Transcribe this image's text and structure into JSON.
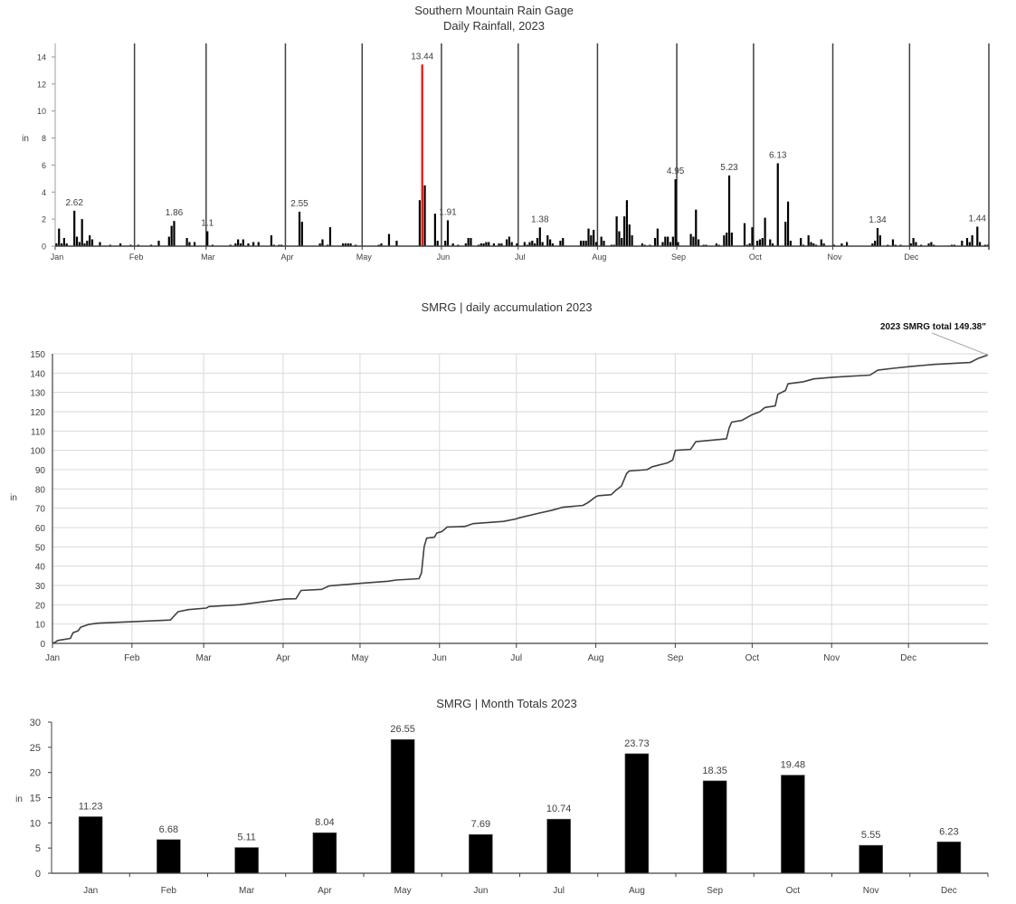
{
  "chart_data": [
    {
      "type": "bar",
      "title": "Southern Mountain Rain Gage",
      "subtitle": "Daily Rainfall, 2023",
      "xlabel": "",
      "ylabel": "in",
      "ylim": [
        0,
        15
      ],
      "yticks": [
        0,
        2,
        4,
        6,
        8,
        10,
        12,
        14
      ],
      "year": 2023,
      "month_labels": [
        "Jan",
        "Feb",
        "Mar",
        "Apr",
        "May",
        "Jun",
        "Jul",
        "Aug",
        "Sep",
        "Oct",
        "Nov",
        "Dec"
      ],
      "month_dividers": true,
      "bar_color": "#000000",
      "highlight_color": "#ff0000",
      "highlight_date": "05-24",
      "labeled_dates": [
        "01-08",
        "02-16",
        "03-01",
        "04-06",
        "05-24",
        "06-03",
        "07-09",
        "08-31",
        "09-21",
        "10-10",
        "11-18",
        "12-27"
      ],
      "daily": [
        [
          "01-01",
          0.2
        ],
        [
          "01-02",
          1.3
        ],
        [
          "01-03",
          0.2
        ],
        [
          "01-04",
          0.6
        ],
        [
          "01-05",
          0.2
        ],
        [
          "01-08",
          2.62
        ],
        [
          "01-09",
          0.7
        ],
        [
          "01-10",
          0.3
        ],
        [
          "01-11",
          2.0
        ],
        [
          "01-12",
          0.2
        ],
        [
          "01-13",
          0.4
        ],
        [
          "01-14",
          0.8
        ],
        [
          "01-15",
          0.5
        ],
        [
          "01-18",
          0.3
        ],
        [
          "01-22",
          0.1
        ],
        [
          "01-26",
          0.2
        ],
        [
          "01-30",
          0.1
        ],
        [
          "02-02",
          0.1
        ],
        [
          "02-07",
          0.1
        ],
        [
          "02-10",
          0.4
        ],
        [
          "02-14",
          0.7
        ],
        [
          "02-15",
          1.5
        ],
        [
          "02-16",
          1.86
        ],
        [
          "02-21",
          0.6
        ],
        [
          "02-22",
          0.3
        ],
        [
          "02-24",
          0.3
        ],
        [
          "03-01",
          1.1
        ],
        [
          "03-03",
          0.1
        ],
        [
          "03-10",
          0.1
        ],
        [
          "03-12",
          0.2
        ],
        [
          "03-13",
          0.5
        ],
        [
          "03-14",
          0.2
        ],
        [
          "03-15",
          0.5
        ],
        [
          "03-17",
          0.2
        ],
        [
          "03-19",
          0.3
        ],
        [
          "03-21",
          0.3
        ],
        [
          "03-26",
          0.8
        ],
        [
          "03-27",
          0.1
        ],
        [
          "03-29",
          0.1
        ],
        [
          "03-30",
          0.1
        ],
        [
          "04-06",
          2.55
        ],
        [
          "04-07",
          1.8
        ],
        [
          "04-14",
          0.2
        ],
        [
          "04-15",
          0.5
        ],
        [
          "04-17",
          0.1
        ],
        [
          "04-18",
          1.4
        ],
        [
          "04-23",
          0.2
        ],
        [
          "04-24",
          0.2
        ],
        [
          "04-25",
          0.2
        ],
        [
          "04-26",
          0.2
        ],
        [
          "04-28",
          0.1
        ],
        [
          "05-07",
          0.1
        ],
        [
          "05-08",
          0.2
        ],
        [
          "05-11",
          0.9
        ],
        [
          "05-14",
          0.4
        ],
        [
          "05-23",
          3.4
        ],
        [
          "05-24",
          13.44
        ],
        [
          "05-25",
          4.5
        ],
        [
          "05-29",
          2.4
        ],
        [
          "05-30",
          0.4
        ],
        [
          "06-02",
          0.4
        ],
        [
          "06-03",
          1.91
        ],
        [
          "06-05",
          0.2
        ],
        [
          "06-07",
          0.1
        ],
        [
          "06-10",
          0.2
        ],
        [
          "06-11",
          0.6
        ],
        [
          "06-12",
          0.6
        ],
        [
          "06-15",
          0.1
        ],
        [
          "06-16",
          0.2
        ],
        [
          "06-17",
          0.2
        ],
        [
          "06-18",
          0.3
        ],
        [
          "06-19",
          0.3
        ],
        [
          "06-21",
          0.2
        ],
        [
          "06-23",
          0.2
        ],
        [
          "06-24",
          0.2
        ],
        [
          "06-26",
          0.5
        ],
        [
          "06-27",
          0.7
        ],
        [
          "06-28",
          0.3
        ],
        [
          "06-30",
          0.2
        ],
        [
          "07-03",
          0.3
        ],
        [
          "07-04",
          0.1
        ],
        [
          "07-05",
          0.3
        ],
        [
          "07-06",
          0.4
        ],
        [
          "07-07",
          0.2
        ],
        [
          "07-08",
          0.6
        ],
        [
          "07-09",
          1.38
        ],
        [
          "07-10",
          0.3
        ],
        [
          "07-12",
          0.8
        ],
        [
          "07-13",
          0.5
        ],
        [
          "07-14",
          0.2
        ],
        [
          "07-17",
          0.4
        ],
        [
          "07-18",
          0.6
        ],
        [
          "07-25",
          0.4
        ],
        [
          "07-26",
          0.4
        ],
        [
          "07-27",
          0.4
        ],
        [
          "07-28",
          1.3
        ],
        [
          "07-29",
          0.8
        ],
        [
          "07-30",
          1.2
        ],
        [
          "07-31",
          0.3
        ],
        [
          "08-02",
          0.7
        ],
        [
          "08-03",
          0.4
        ],
        [
          "08-06",
          0.1
        ],
        [
          "08-07",
          0.1
        ],
        [
          "08-08",
          2.2
        ],
        [
          "08-09",
          1.1
        ],
        [
          "08-10",
          0.6
        ],
        [
          "08-11",
          2.2
        ],
        [
          "08-12",
          3.4
        ],
        [
          "08-13",
          1.6
        ],
        [
          "08-14",
          0.8
        ],
        [
          "08-18",
          0.2
        ],
        [
          "08-19",
          0.1
        ],
        [
          "08-21",
          0.1
        ],
        [
          "08-23",
          0.6
        ],
        [
          "08-24",
          1.3
        ],
        [
          "08-26",
          0.3
        ],
        [
          "08-27",
          0.7
        ],
        [
          "08-28",
          0.7
        ],
        [
          "08-29",
          0.3
        ],
        [
          "08-30",
          0.7
        ],
        [
          "08-31",
          4.95
        ],
        [
          "09-01",
          0.3
        ],
        [
          "09-06",
          0.9
        ],
        [
          "09-07",
          0.7
        ],
        [
          "09-08",
          2.7
        ],
        [
          "09-09",
          0.5
        ],
        [
          "09-11",
          0.1
        ],
        [
          "09-12",
          0.1
        ],
        [
          "09-16",
          0.2
        ],
        [
          "09-17",
          0.1
        ],
        [
          "09-19",
          0.8
        ],
        [
          "09-20",
          1.0
        ],
        [
          "09-21",
          5.23
        ],
        [
          "09-22",
          1.0
        ],
        [
          "09-27",
          1.7
        ],
        [
          "09-28",
          0.1
        ],
        [
          "09-29",
          0.2
        ],
        [
          "09-30",
          1.4
        ],
        [
          "10-02",
          0.4
        ],
        [
          "10-03",
          0.5
        ],
        [
          "10-04",
          0.6
        ],
        [
          "10-05",
          2.1
        ],
        [
          "10-07",
          0.5
        ],
        [
          "10-08",
          0.2
        ],
        [
          "10-10",
          6.13
        ],
        [
          "10-13",
          1.8
        ],
        [
          "10-14",
          3.3
        ],
        [
          "10-15",
          0.4
        ],
        [
          "10-19",
          0.6
        ],
        [
          "10-20",
          0.1
        ],
        [
          "10-22",
          0.8
        ],
        [
          "10-23",
          0.3
        ],
        [
          "10-24",
          0.2
        ],
        [
          "10-25",
          0.1
        ],
        [
          "10-27",
          0.5
        ],
        [
          "10-28",
          0.2
        ],
        [
          "11-01",
          0.1
        ],
        [
          "11-04",
          0.2
        ],
        [
          "11-06",
          0.3
        ],
        [
          "11-16",
          0.2
        ],
        [
          "11-17",
          0.4
        ],
        [
          "11-18",
          1.34
        ],
        [
          "11-19",
          0.8
        ],
        [
          "11-22",
          0.1
        ],
        [
          "11-24",
          0.5
        ],
        [
          "11-25",
          0.1
        ],
        [
          "11-27",
          0.1
        ],
        [
          "12-01",
          0.2
        ],
        [
          "12-02",
          0.6
        ],
        [
          "12-03",
          0.3
        ],
        [
          "12-05",
          0.1
        ],
        [
          "12-08",
          0.2
        ],
        [
          "12-09",
          0.3
        ],
        [
          "12-10",
          0.1
        ],
        [
          "12-17",
          0.1
        ],
        [
          "12-18",
          0.1
        ],
        [
          "12-21",
          0.4
        ],
        [
          "12-23",
          0.6
        ],
        [
          "12-24",
          0.3
        ],
        [
          "12-25",
          0.8
        ],
        [
          "12-27",
          1.44
        ],
        [
          "12-28",
          0.3
        ],
        [
          "12-30",
          0.1
        ],
        [
          "12-31",
          0.1
        ]
      ]
    },
    {
      "type": "line",
      "title": "SMRG | daily accumulation 2023",
      "xlabel": "",
      "ylabel": "in",
      "ylim": [
        0,
        150
      ],
      "yticks": [
        0,
        10,
        20,
        30,
        40,
        50,
        60,
        70,
        80,
        90,
        100,
        110,
        120,
        130,
        140,
        150
      ],
      "grid": true,
      "year": 2023,
      "month_labels": [
        "Jan",
        "Feb",
        "Mar",
        "Apr",
        "May",
        "Jun",
        "Jul",
        "Aug",
        "Sep",
        "Oct",
        "Nov",
        "Dec"
      ],
      "line_color": "#404040",
      "annotation": "2023 SMRG total 149.38\"",
      "points": [
        [
          "01-01",
          0.5
        ],
        [
          "01-02",
          1.5
        ],
        [
          "01-07",
          2.6
        ],
        [
          "01-08",
          5.5
        ],
        [
          "01-10",
          6.5
        ],
        [
          "01-11",
          8.4
        ],
        [
          "01-14",
          9.8
        ],
        [
          "01-18",
          10.5
        ],
        [
          "02-01",
          11.3
        ],
        [
          "02-15",
          12.1
        ],
        [
          "02-16",
          13.5
        ],
        [
          "02-18",
          16.4
        ],
        [
          "02-22",
          17.5
        ],
        [
          "03-01",
          18.3
        ],
        [
          "03-02",
          19.1
        ],
        [
          "03-14",
          20
        ],
        [
          "03-20",
          21
        ],
        [
          "03-27",
          22.2
        ],
        [
          "04-01",
          23
        ],
        [
          "04-05",
          23.1
        ],
        [
          "04-07",
          27.4
        ],
        [
          "04-15",
          28
        ],
        [
          "04-18",
          29.8
        ],
        [
          "05-01",
          31.2
        ],
        [
          "05-11",
          32.2
        ],
        [
          "05-14",
          32.8
        ],
        [
          "05-23",
          33.5
        ],
        [
          "05-24",
          36.5
        ],
        [
          "05-25",
          50
        ],
        [
          "05-26",
          54.5
        ],
        [
          "05-29",
          55
        ],
        [
          "05-30",
          57.2
        ],
        [
          "06-01",
          58
        ],
        [
          "06-03",
          60.3
        ],
        [
          "06-10",
          60.6
        ],
        [
          "06-13",
          62
        ],
        [
          "06-25",
          63.2
        ],
        [
          "06-30",
          64.5
        ],
        [
          "07-01",
          65
        ],
        [
          "07-09",
          67.5
        ],
        [
          "07-14",
          69
        ],
        [
          "07-18",
          70.5
        ],
        [
          "07-26",
          71.5
        ],
        [
          "07-28",
          73
        ],
        [
          "07-31",
          76
        ],
        [
          "08-01",
          76.5
        ],
        [
          "08-06",
          77
        ],
        [
          "08-08",
          79.5
        ],
        [
          "08-10",
          81.5
        ],
        [
          "08-12",
          88
        ],
        [
          "08-13",
          89.3
        ],
        [
          "08-20",
          90
        ],
        [
          "08-22",
          91.5
        ],
        [
          "08-28",
          93.5
        ],
        [
          "08-30",
          95
        ],
        [
          "08-31",
          100
        ],
        [
          "09-06",
          100.5
        ],
        [
          "09-08",
          104.5
        ],
        [
          "09-20",
          106
        ],
        [
          "09-21",
          111.5
        ],
        [
          "09-22",
          114.6
        ],
        [
          "09-26",
          115.5
        ],
        [
          "09-30",
          118.5
        ],
        [
          "10-03",
          120
        ],
        [
          "10-05",
          122.2
        ],
        [
          "10-09",
          123
        ],
        [
          "10-10",
          129
        ],
        [
          "10-13",
          131
        ],
        [
          "10-14",
          134.5
        ],
        [
          "10-20",
          135.5
        ],
        [
          "10-24",
          137
        ],
        [
          "11-01",
          137.9
        ],
        [
          "11-15",
          139
        ],
        [
          "11-18",
          141.5
        ],
        [
          "11-24",
          142.5
        ],
        [
          "12-01",
          143.5
        ],
        [
          "12-10",
          144.5
        ],
        [
          "12-24",
          145.5
        ],
        [
          "12-27",
          147.5
        ],
        [
          "12-31",
          149.38
        ]
      ]
    },
    {
      "type": "bar",
      "title": "SMRG | Month Totals 2023",
      "xlabel": "",
      "ylabel": "in",
      "ylim": [
        0,
        30
      ],
      "yticks": [
        0,
        5,
        10,
        15,
        20,
        25,
        30
      ],
      "bar_color": "#000000",
      "categories": [
        "Jan",
        "Feb",
        "Mar",
        "Apr",
        "May",
        "Jun",
        "Jul",
        "Aug",
        "Sep",
        "Oct",
        "Nov",
        "Dec"
      ],
      "values": [
        11.23,
        6.68,
        5.11,
        8.04,
        26.55,
        7.69,
        10.74,
        23.73,
        18.35,
        19.48,
        5.55,
        6.23
      ],
      "data_labels": [
        "11.23",
        "6.68",
        "5.11",
        "8.04",
        "26.55",
        "7.69",
        "10.74",
        "23.73",
        "18.35",
        "19.48",
        "5.55",
        "6.23"
      ]
    }
  ]
}
